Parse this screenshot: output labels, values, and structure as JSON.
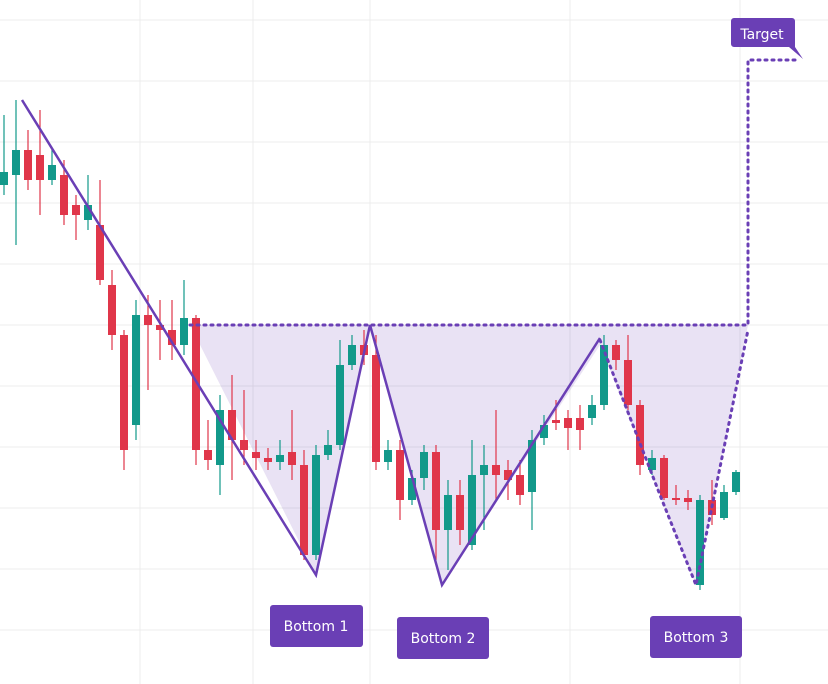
{
  "chart_data": {
    "type": "candlestick",
    "up_color": "#12998a",
    "down_color": "#e0364a",
    "annotation_color": "#6a3fb5",
    "ylim": [
      0,
      684
    ],
    "grid": true,
    "open": [
      499,
      509,
      534,
      529,
      504,
      509,
      479,
      464,
      459,
      399,
      349,
      259,
      369,
      359,
      354,
      339,
      366,
      234,
      219,
      274,
      244,
      232,
      226,
      222,
      232,
      219,
      129,
      229,
      239,
      319,
      339,
      329,
      222,
      234,
      184,
      206,
      232,
      154,
      189,
      139,
      209,
      219,
      214,
      209,
      192,
      246,
      264,
      266,
      266,
      266,
      279,
      339,
      324,
      279,
      214,
      226,
      186,
      186,
      99,
      184,
      166,
      192
    ],
    "close": [
      512,
      534,
      504,
      504,
      519,
      469,
      469,
      479,
      404,
      349,
      234,
      369,
      359,
      354,
      339,
      366,
      234,
      224,
      274,
      244,
      234,
      226,
      222,
      229,
      219,
      129,
      229,
      239,
      319,
      339,
      329,
      222,
      234,
      184,
      206,
      232,
      154,
      189,
      154,
      209,
      219,
      209,
      204,
      189,
      244,
      259,
      261,
      256,
      254,
      279,
      339,
      324,
      279,
      219,
      226,
      186,
      184,
      182,
      184,
      169,
      192,
      212
    ],
    "high": [
      569,
      584,
      554,
      574,
      534,
      524,
      489,
      509,
      504,
      414,
      354,
      384,
      389,
      384,
      384,
      404,
      369,
      264,
      289,
      309,
      294,
      244,
      236,
      244,
      274,
      234,
      239,
      254,
      344,
      349,
      354,
      349,
      244,
      244,
      214,
      239,
      239,
      204,
      204,
      244,
      239,
      274,
      224,
      224,
      254,
      269,
      284,
      274,
      279,
      289,
      349,
      344,
      349,
      284,
      234,
      229,
      199,
      194,
      189,
      204,
      199,
      214
    ],
    "low": [
      489,
      439,
      494,
      469,
      499,
      459,
      444,
      454,
      399,
      334,
      214,
      244,
      294,
      324,
      324,
      329,
      219,
      214,
      189,
      204,
      219,
      214,
      214,
      214,
      204,
      124,
      124,
      224,
      234,
      314,
      319,
      214,
      214,
      164,
      179,
      194,
      124,
      114,
      139,
      134,
      154,
      184,
      184,
      179,
      154,
      239,
      254,
      234,
      234,
      259,
      274,
      314,
      274,
      209,
      209,
      184,
      179,
      174,
      94,
      159,
      164,
      189
    ],
    "annotations": [
      "Target",
      "Bottom 1",
      "Bottom 2",
      "Bottom 3"
    ]
  }
}
